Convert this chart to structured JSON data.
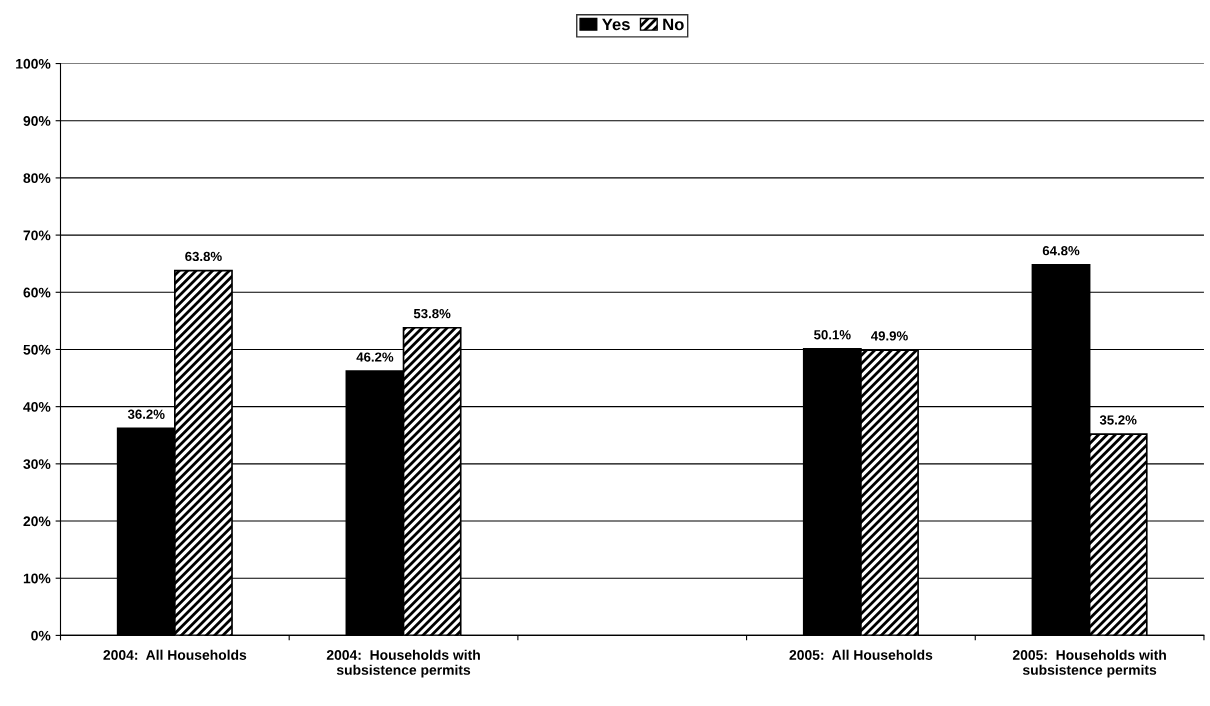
{
  "chart_data": {
    "type": "bar",
    "categories": [
      "2004:  All Households",
      "2004:  Households with\nsubsistence permits",
      null,
      "2005:  All Households",
      "2005:  Households with\nsubsistence permits"
    ],
    "series": [
      {
        "name": "Yes",
        "color": "#000000",
        "values": [
          36.2,
          46.2,
          null,
          50.1,
          64.8
        ],
        "value_labels": [
          "36.2%",
          "46.2%",
          null,
          "50.1%",
          "64.8%"
        ]
      },
      {
        "name": "No",
        "color": "#000000",
        "values": [
          63.8,
          53.8,
          null,
          49.9,
          35.2
        ],
        "value_labels": [
          "63.8%",
          "53.8%",
          null,
          "49.9%",
          "35.2%"
        ]
      }
    ],
    "ylim": [
      0,
      100
    ],
    "yticks": [
      {
        "value": 0,
        "label": "0%"
      },
      {
        "value": 10,
        "label": "10%"
      },
      {
        "value": 20,
        "label": "20%"
      },
      {
        "value": 30,
        "label": "30%"
      },
      {
        "value": 40,
        "label": "40%"
      },
      {
        "value": 50,
        "label": "50%"
      },
      {
        "value": 60,
        "label": "60%"
      },
      {
        "value": 70,
        "label": "70%"
      },
      {
        "value": 80,
        "label": "80%"
      },
      {
        "value": 90,
        "label": "90%"
      },
      {
        "value": 100,
        "label": "100%"
      }
    ],
    "grid": "y",
    "legend": "top"
  }
}
